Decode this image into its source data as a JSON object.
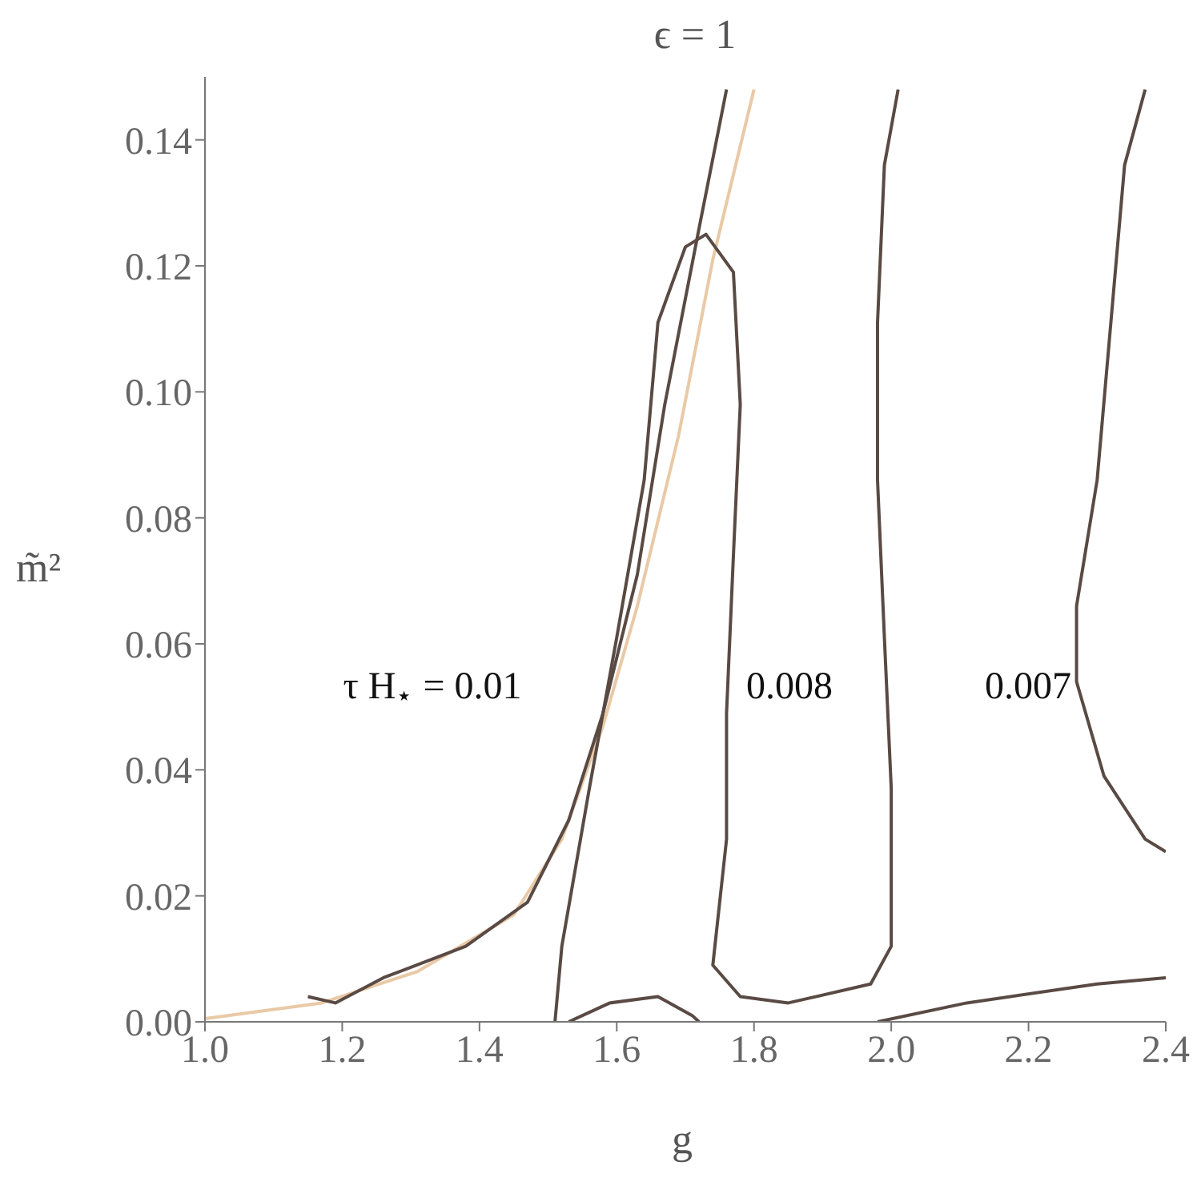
{
  "chart_data": {
    "type": "line",
    "title": "ϵ = 1",
    "xlabel": "g",
    "ylabel": "m̃²",
    "xlim": [
      1.0,
      2.4
    ],
    "ylim": [
      0,
      0.15
    ],
    "xticks": [
      {
        "value": 1.0,
        "label": "1.0"
      },
      {
        "value": 1.2,
        "label": "1.2"
      },
      {
        "value": 1.4,
        "label": "1.4"
      },
      {
        "value": 1.6,
        "label": "1.6"
      },
      {
        "value": 1.8,
        "label": "1.8"
      },
      {
        "value": 2.0,
        "label": "2.0"
      },
      {
        "value": 2.2,
        "label": "2.2"
      },
      {
        "value": 2.4,
        "label": "2.4"
      }
    ],
    "yticks": [
      {
        "value": 0,
        "label": "0.00"
      },
      {
        "value": 0.02,
        "label": "0.02"
      },
      {
        "value": 0.04,
        "label": "0.04"
      },
      {
        "value": 0.06,
        "label": "0.06"
      },
      {
        "value": 0.08,
        "label": "0.08"
      },
      {
        "value": 0.1,
        "label": "0.10"
      },
      {
        "value": 0.12,
        "label": "0.12"
      },
      {
        "value": 0.14,
        "label": "0.14"
      }
    ],
    "grid": false,
    "marker": "none",
    "line_style": "solid",
    "series": [
      {
        "color": "#e9c9a6",
        "x": [
          1.0,
          1.17,
          1.31,
          1.45,
          1.52,
          1.58,
          1.63,
          1.69,
          1.74,
          1.8
        ],
        "values": [
          0.0005,
          0.003,
          0.008,
          0.017,
          0.029,
          0.047,
          0.066,
          0.093,
          0.121,
          0.148
        ]
      },
      {
        "color": "#5a4a44",
        "x": [
          1.15,
          1.19,
          1.26,
          1.38,
          1.47,
          1.53,
          1.58,
          1.63,
          1.67,
          1.72,
          1.76
        ],
        "values": [
          0.004,
          0.003,
          0.007,
          0.012,
          0.019,
          0.032,
          0.049,
          0.071,
          0.098,
          0.126,
          0.148
        ]
      },
      {
        "color": "#5a4a44",
        "x": [
          1.51,
          1.52,
          1.56,
          1.6,
          1.64,
          1.66,
          1.7,
          1.73,
          1.77,
          1.78,
          1.77,
          1.76,
          1.76,
          1.74,
          1.78,
          1.85,
          1.97,
          2.0,
          2.0,
          1.99,
          1.98,
          1.98,
          1.99,
          2.01
        ],
        "values": [
          0,
          0.012,
          0.037,
          0.061,
          0.086,
          0.111,
          0.123,
          0.125,
          0.119,
          0.098,
          0.074,
          0.049,
          0.029,
          0.009,
          0.004,
          0.003,
          0.006,
          0.012,
          0.037,
          0.061,
          0.086,
          0.111,
          0.136,
          0.148
        ]
      },
      {
        "color": "#5a4a44",
        "x": [
          1.53,
          1.59,
          1.66,
          1.71,
          1.72
        ],
        "values": [
          0,
          0.003,
          0.004,
          0.001,
          0
        ]
      },
      {
        "color": "#5a4a44",
        "x": [
          1.98,
          2.11,
          2.3,
          2.4
        ],
        "values": [
          0,
          0.003,
          0.006,
          0.007
        ]
      },
      {
        "color": "#5a4a44",
        "x": [
          2.37,
          2.34,
          2.32,
          2.3,
          2.27,
          2.27,
          2.31,
          2.37,
          2.4
        ],
        "values": [
          0.148,
          0.136,
          0.111,
          0.086,
          0.066,
          0.054,
          0.039,
          0.029,
          0.027
        ]
      }
    ],
    "annotations": [
      "τ H$_{⋆}$ = 0.01",
      "0.008",
      "0.007"
    ]
  }
}
